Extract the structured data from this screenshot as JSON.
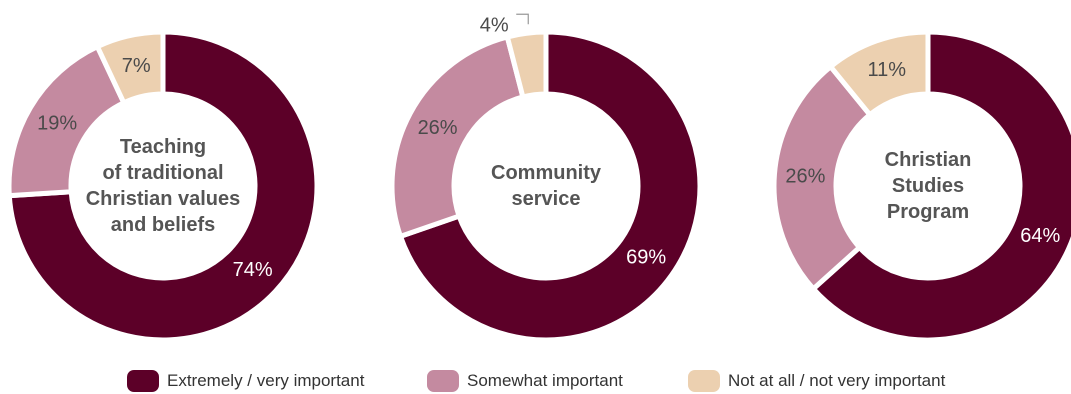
{
  "colors": {
    "extremely": "#5c0028",
    "somewhat": "#c48aa0",
    "not_at_all": "#ecd0b0",
    "center_text": "#555555",
    "label_on_dark": "#ffffff",
    "label_on_light": "#4a4a4a"
  },
  "legend": [
    {
      "label": "Extremely / very important",
      "color": "#5c0028"
    },
    {
      "label": "Somewhat important",
      "color": "#c48aa0"
    },
    {
      "label": "Not at all / not very important",
      "color": "#ecd0b0"
    }
  ],
  "chart_data": [
    {
      "type": "pie",
      "center_label": [
        "Teaching",
        "of traditional",
        "Christian values",
        "and beliefs"
      ],
      "categories": [
        "Extremely / very important",
        "Somewhat important",
        "Not at all / not very important"
      ],
      "values": [
        74,
        19,
        7
      ],
      "data_labels": [
        "74%",
        "19%",
        "7%"
      ]
    },
    {
      "type": "pie",
      "center_label": [
        "Community",
        "service"
      ],
      "categories": [
        "Extremely / very important",
        "Somewhat important",
        "Not at all / not very important"
      ],
      "values": [
        69,
        26,
        4
      ],
      "data_labels": [
        "69%",
        "26%",
        "4%"
      ]
    },
    {
      "type": "pie",
      "center_label": [
        "Christian",
        "Studies",
        "Program"
      ],
      "categories": [
        "Extremely / very important",
        "Somewhat important",
        "Not at all / not very important"
      ],
      "values": [
        64,
        26,
        11
      ],
      "data_labels": [
        "64%",
        "26%",
        "11%"
      ]
    }
  ]
}
